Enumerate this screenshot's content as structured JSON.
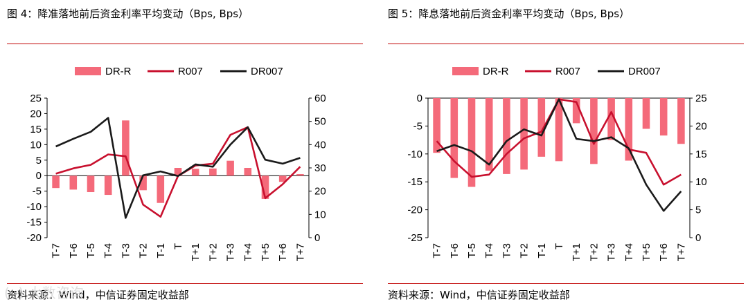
{
  "watermark": "(··) 大数咨询",
  "panels": [
    {
      "title": "图 4：降准落地前后资金利率平均变动（Bps, Bps）",
      "source": "资料来源：Wind，中信证券固定收益部"
    },
    {
      "title": "图 5：降息落地前后资金利率平均变动（Bps, Bps）",
      "source": "资料来源：Wind，中信证券固定收益部"
    }
  ],
  "chart_data": [
    {
      "type": "bar+line",
      "title": "图 4：降准落地前后资金利率平均变动（Bps, Bps）",
      "categories": [
        "T-7",
        "T-6",
        "T-5",
        "T-4",
        "T-3",
        "T-2",
        "T-1",
        "T",
        "T+1",
        "T+2",
        "T+3",
        "T+4",
        "T+5",
        "T+6",
        "T+7"
      ],
      "y_left": {
        "min": -20,
        "max": 25,
        "ticks": [
          "-20",
          "-15",
          "-10",
          "-5",
          "0",
          "5",
          "10",
          "15",
          "20",
          "25"
        ]
      },
      "y_right": {
        "min": 0,
        "max": 60,
        "ticks": [
          "0",
          "10",
          "20",
          "30",
          "40",
          "50",
          "60"
        ]
      },
      "legend": [
        "DR-R",
        "R007",
        "DR007"
      ],
      "series": [
        {
          "name": "DR-R",
          "kind": "bar",
          "axis": "left",
          "color": "#f46a7a",
          "values": [
            -4.0,
            -4.5,
            -5.3,
            -6.2,
            17.8,
            -4.7,
            -8.8,
            2.5,
            2.2,
            2.3,
            4.8,
            2.5,
            -7.5,
            -2.0,
            0.5
          ]
        },
        {
          "name": "R007",
          "kind": "line",
          "axis": "right",
          "color": "#c8102e",
          "values": [
            27.5,
            29.8,
            31.3,
            35.8,
            35.0,
            14.2,
            9.0,
            26.5,
            31.0,
            31.8,
            44.2,
            47.5,
            17.0,
            23.0,
            30.5
          ]
        },
        {
          "name": "DR007",
          "kind": "line",
          "axis": "right",
          "color": "#1a1a1a",
          "values": [
            39.2,
            42.5,
            45.5,
            51.5,
            8.5,
            26.8,
            28.5,
            26.5,
            31.5,
            30.5,
            40.0,
            47.5,
            33.5,
            31.8,
            34.3
          ]
        }
      ]
    },
    {
      "type": "bar+line",
      "title": "图 5：降息落地前后资金利率平均变动（Bps, Bps）",
      "categories": [
        "T-7",
        "T-6",
        "T-5",
        "T-4",
        "T-3",
        "T-2",
        "T-1",
        "T",
        "T+1",
        "T+2",
        "T+3",
        "T+4",
        "T+5",
        "T+6",
        "T+7"
      ],
      "y_left": {
        "min": -25,
        "max": 0,
        "ticks": [
          "-25",
          "-20",
          "-15",
          "-10",
          "-5",
          "0"
        ]
      },
      "y_right": {
        "min": 0,
        "max": 25,
        "ticks": [
          "0",
          "5",
          "10",
          "15",
          "20",
          "25"
        ]
      },
      "legend": [
        "DR-R",
        "R007",
        "DR007"
      ],
      "series": [
        {
          "name": "DR-R",
          "kind": "bar",
          "axis": "left",
          "color": "#f46a7a",
          "values": [
            -9.8,
            -14.3,
            -15.9,
            -13.0,
            -13.6,
            -12.8,
            -10.5,
            -11.3,
            -4.5,
            -11.8,
            -7.5,
            -11.2,
            -5.5,
            -6.7,
            -8.2
          ]
        },
        {
          "name": "R007",
          "kind": "line",
          "axis": "right",
          "color": "#c8102e",
          "values": [
            17.3,
            13.7,
            10.9,
            11.3,
            15.0,
            17.8,
            19.0,
            24.8,
            24.3,
            16.8,
            22.5,
            15.8,
            15.2,
            9.5,
            11.3
          ]
        },
        {
          "name": "DR007",
          "kind": "line",
          "axis": "right",
          "color": "#1a1a1a",
          "values": [
            15.5,
            16.6,
            15.5,
            13.1,
            17.3,
            19.4,
            18.3,
            24.8,
            17.7,
            17.3,
            18.0,
            16.0,
            9.5,
            4.8,
            8.3
          ]
        }
      ]
    }
  ]
}
